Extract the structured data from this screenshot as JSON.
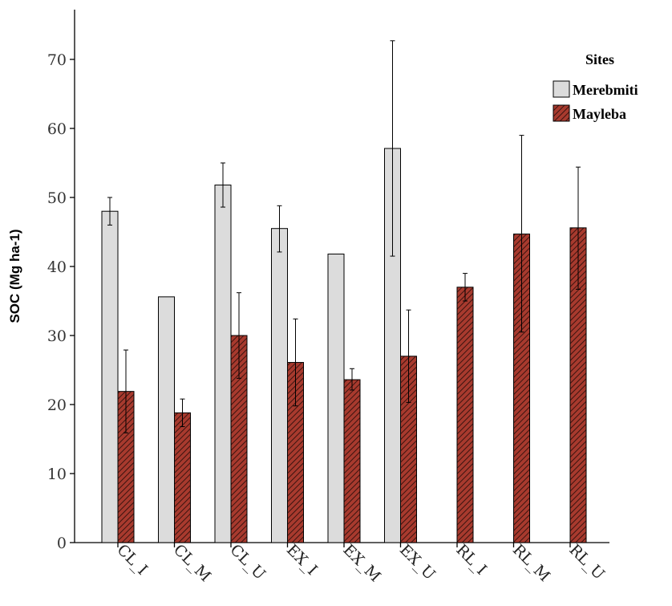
{
  "chart_data": {
    "type": "bar",
    "ylabel": "SOC (Mg ha-1)",
    "xlabel": "",
    "ylim": [
      0,
      75
    ],
    "yticks": [
      0,
      10,
      20,
      30,
      40,
      50,
      60,
      70
    ],
    "categories": [
      "CL_I",
      "CL_M",
      "CL_U",
      "EX_I",
      "EX_M",
      "EX_U",
      "RL_I",
      "RL_M",
      "RL_U"
    ],
    "legend": {
      "title": "Sites",
      "placement": "top-right"
    },
    "series": [
      {
        "name": "Merebmiti",
        "color": "#dcdcdc",
        "pattern": "none",
        "values": [
          48.0,
          35.6,
          51.8,
          45.5,
          41.8,
          57.1,
          null,
          null,
          null
        ],
        "err_low": [
          46.0,
          null,
          48.6,
          42.1,
          null,
          41.5,
          null,
          null,
          null
        ],
        "err_high": [
          50.0,
          null,
          55.0,
          48.8,
          null,
          72.7,
          null,
          null,
          null
        ]
      },
      {
        "name": "Mayleba",
        "color": "#a52a2a",
        "pattern": "diagonal-hatch",
        "values": [
          21.9,
          18.8,
          30.0,
          26.1,
          23.6,
          27.0,
          37.0,
          44.7,
          45.6
        ],
        "err_low": [
          15.9,
          16.8,
          23.8,
          19.8,
          22.1,
          20.3,
          35.0,
          30.5,
          36.7
        ],
        "err_high": [
          27.9,
          20.8,
          36.2,
          32.4,
          25.2,
          33.7,
          39.0,
          59.0,
          54.4
        ]
      }
    ]
  }
}
